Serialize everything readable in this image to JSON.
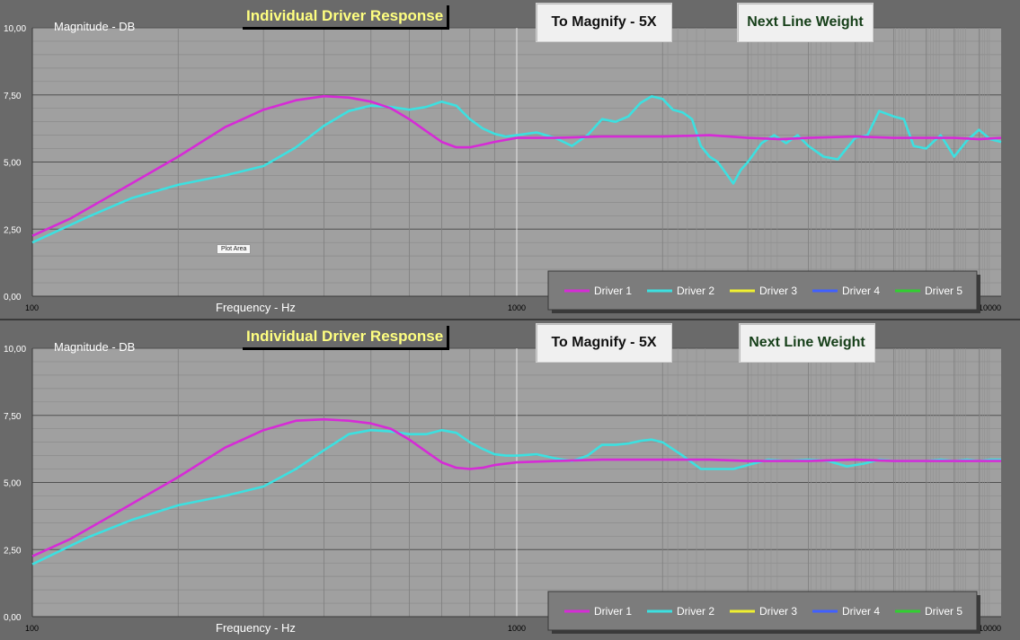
{
  "chart_data": [
    {
      "type": "line",
      "title": "Individual Driver Response",
      "xlabel": "Frequency  -  Hz",
      "ylabel": "Magnitude  -  DB",
      "x_scale": "log",
      "xlim": [
        100,
        10000
      ],
      "ylim": [
        0,
        10
      ],
      "x_tick_labels": [
        "100",
        "1000",
        "10000"
      ],
      "y_tick_labels": [
        "0,00",
        "2,50",
        "5,00",
        "7,50",
        "10,00"
      ],
      "grid": true,
      "legend": "bottom-right",
      "legend_entries": [
        "Driver 1",
        "Driver 2",
        "Driver 3",
        "Driver 4",
        "Driver 5"
      ],
      "series": [
        {
          "name": "Driver 1",
          "color": "#d62bd6",
          "x": [
            100,
            120,
            150,
            200,
            250,
            300,
            350,
            400,
            450,
            500,
            550,
            600,
            650,
            700,
            750,
            800,
            850,
            900,
            1000,
            1200,
            1500,
            2000,
            2500,
            3000,
            3500,
            4000,
            5000,
            6000,
            7000,
            8000,
            9000,
            10000
          ],
          "y": [
            2.25,
            2.9,
            3.9,
            5.2,
            6.3,
            6.95,
            7.3,
            7.45,
            7.4,
            7.25,
            7.0,
            6.6,
            6.15,
            5.75,
            5.55,
            5.55,
            5.65,
            5.75,
            5.9,
            5.9,
            5.95,
            5.95,
            6.0,
            5.9,
            5.85,
            5.9,
            5.95,
            5.9,
            5.9,
            5.9,
            5.85,
            5.9
          ]
        },
        {
          "name": "Driver 2",
          "color": "#3ce0e0",
          "x": [
            100,
            130,
            160,
            200,
            250,
            300,
            350,
            400,
            450,
            500,
            550,
            600,
            650,
            700,
            750,
            800,
            850,
            900,
            950,
            1000,
            1100,
            1200,
            1300,
            1400,
            1500,
            1600,
            1700,
            1800,
            1900,
            2000,
            2100,
            2200,
            2300,
            2400,
            2500,
            2600,
            2700,
            2800,
            2900,
            3000,
            3200,
            3400,
            3600,
            3800,
            4000,
            4300,
            4600,
            5000,
            5300,
            5600,
            6000,
            6300,
            6600,
            7000,
            7500,
            8000,
            8500,
            9000,
            9500,
            10000
          ],
          "y": [
            2.0,
            2.95,
            3.65,
            4.15,
            4.5,
            4.85,
            5.55,
            6.35,
            6.9,
            7.1,
            7.05,
            6.95,
            7.05,
            7.25,
            7.1,
            6.6,
            6.25,
            6.05,
            5.95,
            6.0,
            6.1,
            5.9,
            5.6,
            6.0,
            6.6,
            6.5,
            6.7,
            7.2,
            7.45,
            7.35,
            6.95,
            6.85,
            6.6,
            5.6,
            5.2,
            5.0,
            4.6,
            4.2,
            4.7,
            5.0,
            5.7,
            6.0,
            5.7,
            6.0,
            5.6,
            5.2,
            5.1,
            5.9,
            6.0,
            6.9,
            6.7,
            6.6,
            5.6,
            5.5,
            6.0,
            5.2,
            5.8,
            6.2,
            5.85,
            5.75
          ]
        },
        {
          "name": "Driver 3",
          "color": "#f0f030",
          "x": [],
          "y": []
        },
        {
          "name": "Driver 4",
          "color": "#4060ff",
          "x": [],
          "y": []
        },
        {
          "name": "Driver 5",
          "color": "#30d030",
          "x": [],
          "y": []
        }
      ]
    },
    {
      "type": "line",
      "title": "Individual Driver Response",
      "xlabel": "Frequency  -  Hz",
      "ylabel": "Magnitude  -  DB",
      "x_scale": "log",
      "xlim": [
        100,
        10000
      ],
      "ylim": [
        0,
        10
      ],
      "x_tick_labels": [
        "100",
        "1000",
        "10000"
      ],
      "y_tick_labels": [
        "0,00",
        "2,50",
        "5,00",
        "7,50",
        "10,00"
      ],
      "grid": true,
      "legend": "bottom-right",
      "legend_entries": [
        "Driver 1",
        "Driver 2",
        "Driver 3",
        "Driver 4",
        "Driver 5"
      ],
      "series": [
        {
          "name": "Driver 1",
          "color": "#d62bd6",
          "x": [
            100,
            120,
            150,
            200,
            250,
            300,
            350,
            400,
            450,
            500,
            550,
            600,
            650,
            700,
            750,
            800,
            850,
            900,
            1000,
            1200,
            1500,
            2000,
            2500,
            3000,
            4000,
            5000,
            6000,
            7000,
            8000,
            10000
          ],
          "y": [
            2.25,
            2.9,
            3.9,
            5.2,
            6.3,
            6.95,
            7.3,
            7.35,
            7.3,
            7.2,
            7.0,
            6.6,
            6.15,
            5.75,
            5.55,
            5.5,
            5.55,
            5.65,
            5.75,
            5.8,
            5.85,
            5.85,
            5.85,
            5.8,
            5.8,
            5.85,
            5.8,
            5.8,
            5.8,
            5.8
          ]
        },
        {
          "name": "Driver 2",
          "color": "#3ce0e0",
          "x": [
            100,
            130,
            160,
            200,
            250,
            300,
            350,
            400,
            450,
            500,
            550,
            600,
            650,
            700,
            750,
            800,
            850,
            900,
            950,
            1000,
            1100,
            1200,
            1300,
            1400,
            1500,
            1600,
            1700,
            1800,
            1900,
            2000,
            2200,
            2400,
            2600,
            2800,
            3000,
            3300,
            3600,
            4000,
            4400,
            4800,
            5200,
            5600,
            6000,
            6500,
            7000,
            7500,
            8000,
            8500,
            9000,
            9500,
            10000
          ],
          "y": [
            1.95,
            2.95,
            3.6,
            4.15,
            4.5,
            4.85,
            5.5,
            6.2,
            6.8,
            6.95,
            6.9,
            6.8,
            6.8,
            6.95,
            6.85,
            6.5,
            6.25,
            6.05,
            6.0,
            6.0,
            6.05,
            5.9,
            5.8,
            6.0,
            6.4,
            6.4,
            6.45,
            6.55,
            6.6,
            6.5,
            6.0,
            5.5,
            5.5,
            5.5,
            5.65,
            5.85,
            5.8,
            5.85,
            5.8,
            5.6,
            5.7,
            5.85,
            5.8,
            5.8,
            5.8,
            5.85,
            5.8,
            5.85,
            5.8,
            5.85,
            5.85
          ]
        },
        {
          "name": "Driver 3",
          "color": "#f0f030",
          "x": [],
          "y": []
        },
        {
          "name": "Driver 4",
          "color": "#4060ff",
          "x": [],
          "y": []
        },
        {
          "name": "Driver 5",
          "color": "#30d030",
          "x": [],
          "y": []
        }
      ]
    }
  ],
  "ui": {
    "title": "Individual Driver Response",
    "magnify_button": "To Magnify - 5X",
    "line_weight_button": "Next Line Weight",
    "plot_area_tag": "Plot Area"
  },
  "colors": {
    "plot_bg": "#a0a0a0",
    "frame_bg": "#6a6a6a",
    "grid_major": "#505050",
    "grid_minor": "#8a8a8a",
    "title_text": "#ffff80"
  }
}
